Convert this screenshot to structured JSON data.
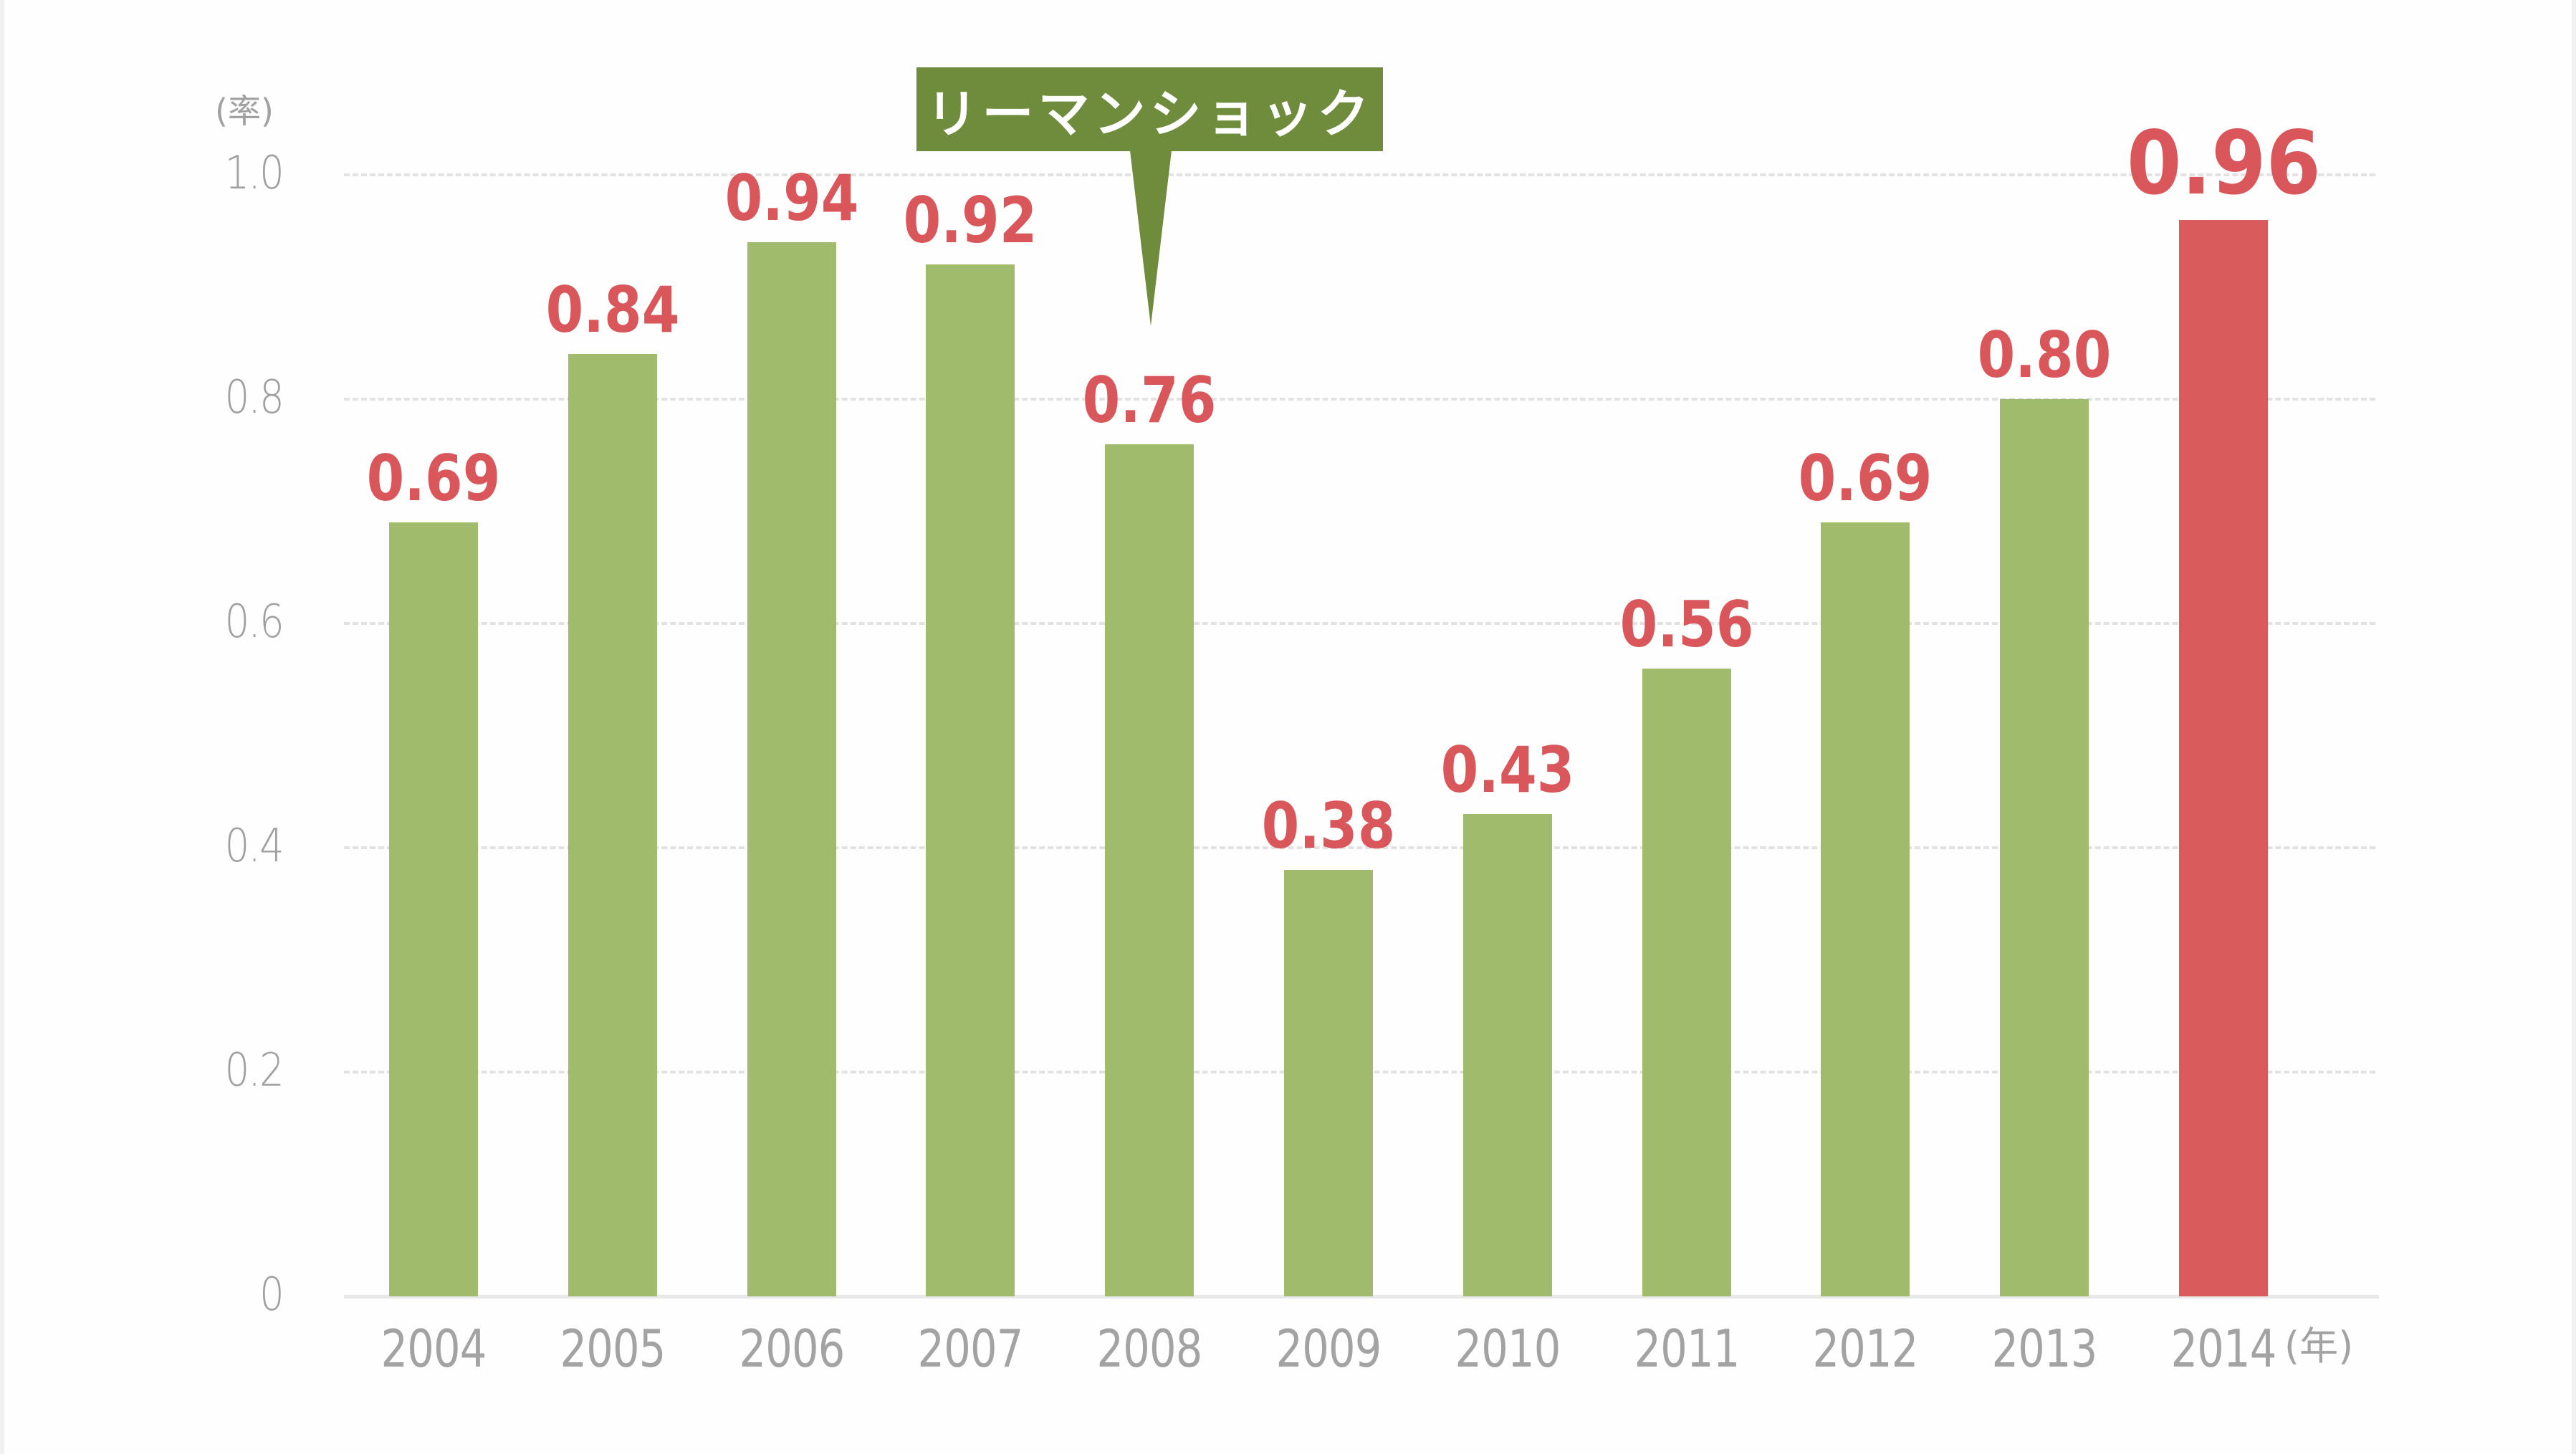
{
  "chart_data": {
    "type": "bar",
    "title": "",
    "xlabel": "(年)",
    "ylabel": "(率)",
    "ylim": [
      0,
      1.0
    ],
    "yticks": [
      0,
      0.2,
      0.4,
      0.6,
      0.8,
      1.0
    ],
    "ytick_labels": [
      "0",
      "0.2",
      "0.4",
      "0.6",
      "0.8",
      "1.0"
    ],
    "grid": true,
    "legend": null,
    "categories": [
      "2004",
      "2005",
      "2006",
      "2007",
      "2008",
      "2009",
      "2010",
      "2011",
      "2012",
      "2013",
      "2014"
    ],
    "values": [
      0.69,
      0.84,
      0.94,
      0.92,
      0.76,
      0.38,
      0.43,
      0.56,
      0.69,
      0.8,
      0.96
    ],
    "value_labels": [
      "0.69",
      "0.84",
      "0.94",
      "0.92",
      "0.76",
      "0.38",
      "0.43",
      "0.56",
      "0.69",
      "0.80",
      "0.96"
    ],
    "highlight_index": 10,
    "annotations": [
      {
        "text": "リーマンショック",
        "points_to": "2008"
      }
    ],
    "colors": {
      "bar": "#a0bb6c",
      "highlight_bar": "#d95b5b",
      "value_label": "#d9575a",
      "annotation_bg": "#6f8c3d",
      "annotation_text": "#ffffff",
      "axis_text": "#a0a0a0",
      "gridline": "#e2e2e2"
    }
  },
  "axis": {
    "y_unit": "(率)",
    "x_unit": "(年)"
  },
  "annotation": {
    "label": "リーマンショック"
  }
}
